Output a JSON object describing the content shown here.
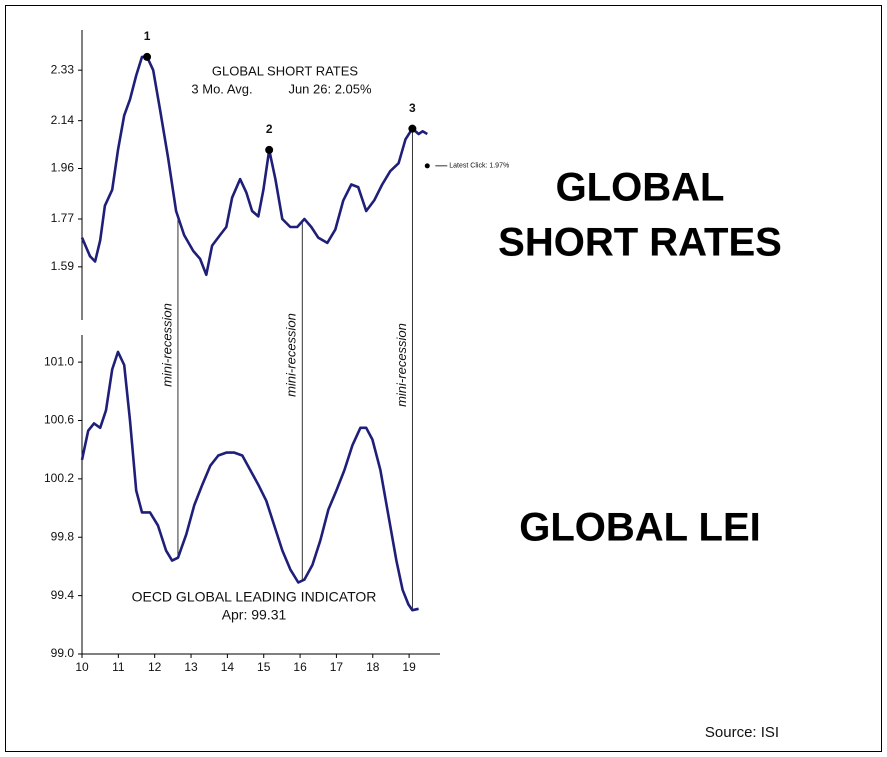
{
  "chart_data": [
    {
      "type": "line",
      "title": "GLOBAL SHORT RATES",
      "subtitle": "3 Mo. Avg.",
      "annotation": "Jun 26: 2.05%",
      "color": "#1f1f7a",
      "xlim": [
        10,
        19.85
      ],
      "ylim": [
        1.39,
        2.5
      ],
      "yticks": [
        2.33,
        2.14,
        1.96,
        1.77,
        1.59
      ],
      "x": [
        10.0,
        10.22,
        10.36,
        10.5,
        10.63,
        10.83,
        10.99,
        11.16,
        11.32,
        11.49,
        11.65,
        11.79,
        11.96,
        12.15,
        12.37,
        12.59,
        12.81,
        13.06,
        13.25,
        13.42,
        13.58,
        13.8,
        13.97,
        14.13,
        14.35,
        14.52,
        14.68,
        14.85,
        14.99,
        15.15,
        15.32,
        15.51,
        15.73,
        15.92,
        16.12,
        16.31,
        16.5,
        16.75,
        16.97,
        17.19,
        17.41,
        17.6,
        17.82,
        18.04,
        18.26,
        18.48,
        18.71,
        18.9,
        19.09,
        19.26,
        19.37,
        19.5
      ],
      "values": [
        1.7,
        1.63,
        1.61,
        1.69,
        1.82,
        1.88,
        2.03,
        2.16,
        2.22,
        2.31,
        2.38,
        2.38,
        2.33,
        2.18,
        2.0,
        1.8,
        1.71,
        1.65,
        1.62,
        1.56,
        1.67,
        1.71,
        1.74,
        1.85,
        1.92,
        1.87,
        1.8,
        1.78,
        1.88,
        2.03,
        1.92,
        1.77,
        1.74,
        1.74,
        1.77,
        1.74,
        1.7,
        1.68,
        1.73,
        1.84,
        1.9,
        1.89,
        1.8,
        1.84,
        1.9,
        1.95,
        1.98,
        2.07,
        2.11,
        2.09,
        2.1,
        2.09
      ],
      "points": [
        {
          "label": "1",
          "x": 11.79,
          "y": 2.38
        },
        {
          "label": "2",
          "x": 15.15,
          "y": 2.03
        },
        {
          "label": "3",
          "x": 19.09,
          "y": 2.11
        }
      ],
      "latest": {
        "label": "Latest Click: 1.97%",
        "x": 19.5,
        "y": 1.97
      }
    },
    {
      "type": "line",
      "title": "OECD GLOBAL LEADING INDICATOR",
      "subtitle": "Apr: 99.31",
      "color": "#1f1f7a",
      "xlim": [
        10,
        19.85
      ],
      "ylim": [
        99.0,
        101.22
      ],
      "yticks": [
        {
          "value": 101,
          "label": "101.0"
        },
        100.6,
        100.2,
        99.8,
        99.4,
        {
          "value": 99,
          "label": "99.0"
        }
      ],
      "xticks": [
        10,
        11,
        12,
        13,
        14,
        15,
        16,
        17,
        18,
        19
      ],
      "x": [
        10.0,
        10.17,
        10.33,
        10.5,
        10.66,
        10.83,
        10.99,
        11.16,
        11.32,
        11.49,
        11.65,
        11.87,
        12.09,
        12.31,
        12.48,
        12.64,
        12.87,
        13.09,
        13.31,
        13.53,
        13.75,
        13.97,
        14.19,
        14.41,
        14.63,
        14.85,
        15.07,
        15.29,
        15.51,
        15.73,
        15.95,
        16.12,
        16.34,
        16.56,
        16.78,
        17.0,
        17.22,
        17.44,
        17.66,
        17.82,
        17.99,
        18.21,
        18.43,
        18.65,
        18.82,
        18.98,
        19.09,
        19.26
      ],
      "values": [
        100.33,
        100.53,
        100.58,
        100.55,
        100.67,
        100.95,
        101.07,
        100.98,
        100.6,
        100.12,
        99.97,
        99.97,
        99.88,
        99.71,
        99.64,
        99.66,
        99.82,
        100.02,
        100.16,
        100.29,
        100.36,
        100.38,
        100.38,
        100.36,
        100.26,
        100.16,
        100.05,
        99.88,
        99.71,
        99.58,
        99.49,
        99.51,
        99.61,
        99.78,
        99.99,
        100.12,
        100.26,
        100.43,
        100.55,
        100.55,
        100.47,
        100.26,
        99.95,
        99.64,
        99.44,
        99.34,
        99.3,
        99.31
      ]
    }
  ],
  "recessions": [
    {
      "x": 12.64,
      "label": "mini-recession"
    },
    {
      "x": 16.06,
      "label": "mini-recession"
    },
    {
      "x": 19.09,
      "label": "mini-recession"
    }
  ],
  "labels": {
    "short_rates": [
      "GLOBAL",
      "SHORT RATES"
    ],
    "lei": "GLOBAL LEI"
  },
  "source": "Source: ISI"
}
